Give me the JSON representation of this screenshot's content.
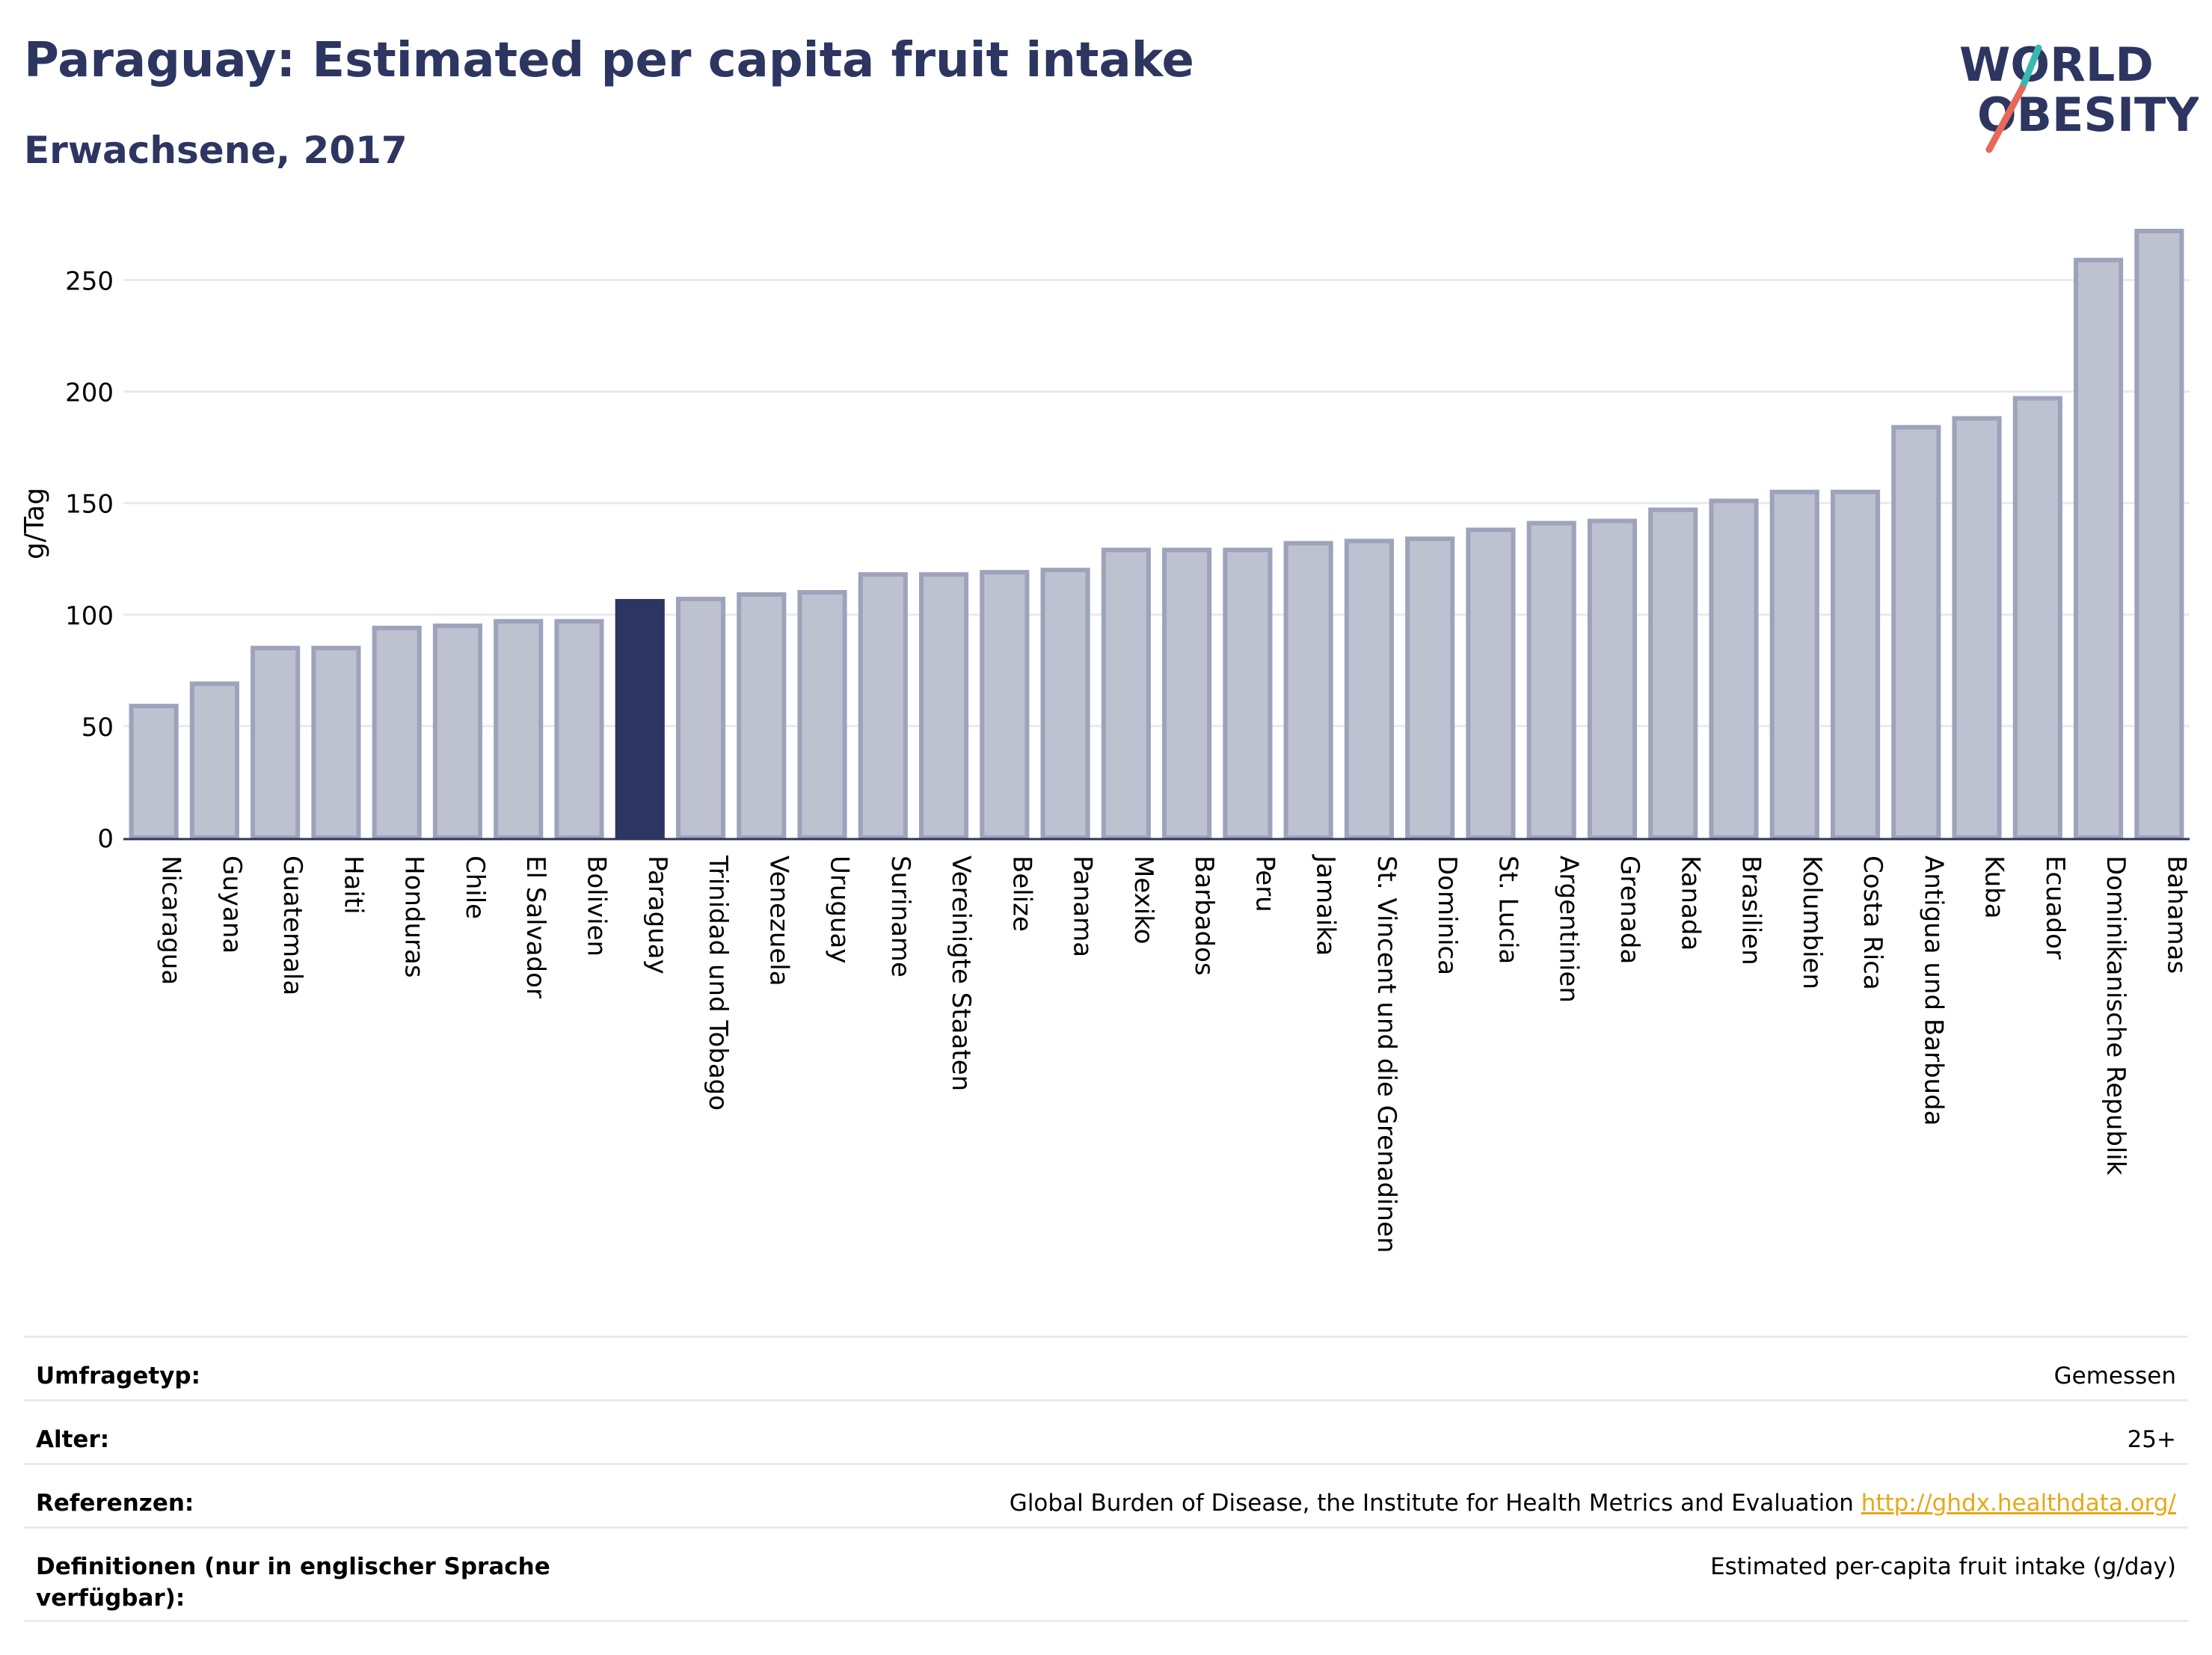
{
  "header": {
    "title": "Paraguay: Estimated per capita fruit intake",
    "subtitle": "Erwachsene, 2017"
  },
  "logo": {
    "line1": "WORLD",
    "line2": "OBESITY"
  },
  "colors": {
    "bar": "#bec1cf",
    "bar_edge": "#9ea3bb",
    "highlight": "#2d3561",
    "title": "#2d3561",
    "grid": "#e8eaf0",
    "logo_teal": "#3ab7b0",
    "logo_red": "#e8685a"
  },
  "chart_data": {
    "type": "bar",
    "ylabel": "g/Tag",
    "ylim": [
      0,
      275
    ],
    "yticks": [
      0,
      50,
      100,
      150,
      200,
      250
    ],
    "grid": true,
    "highlight": "Paraguay",
    "categories": [
      "Nicaragua",
      "Guyana",
      "Guatemala",
      "Haiti",
      "Honduras",
      "Chile",
      "El Salvador",
      "Bolivien",
      "Paraguay",
      "Trinidad und Tobago",
      "Venezuela",
      "Uruguay",
      "Suriname",
      "Vereinigte Staaten",
      "Belize",
      "Panama",
      "Mexiko",
      "Barbados",
      "Peru",
      "Jamaika",
      "St. Vincent und die Grenadinen",
      "Dominica",
      "St. Lucia",
      "Argentinien",
      "Grenada",
      "Kanada",
      "Brasilien",
      "Kolumbien",
      "Costa Rica",
      "Antigua und Barbuda",
      "Kuba",
      "Ecuador",
      "Dominikanische Republik",
      "Bahamas"
    ],
    "values": [
      59,
      69,
      85,
      85,
      94,
      95,
      97,
      97,
      106,
      107,
      109,
      110,
      118,
      118,
      119,
      120,
      129,
      129,
      129,
      132,
      133,
      134,
      138,
      141,
      142,
      147,
      151,
      155,
      155,
      184,
      188,
      197,
      259,
      272
    ]
  },
  "meta": [
    {
      "key": "Umfragetyp:",
      "value": "Gemessen"
    },
    {
      "key": "Alter:",
      "value": "25+"
    },
    {
      "key": "Referenzen:",
      "value": "Global Burden of Disease, the Institute for Health Metrics and Evaluation",
      "link": "http://ghdx.healthdata.org/"
    },
    {
      "key": "Definitionen (nur in englischer Sprache verfügbar):",
      "value": "Estimated per-capita fruit intake (g/day)"
    }
  ]
}
